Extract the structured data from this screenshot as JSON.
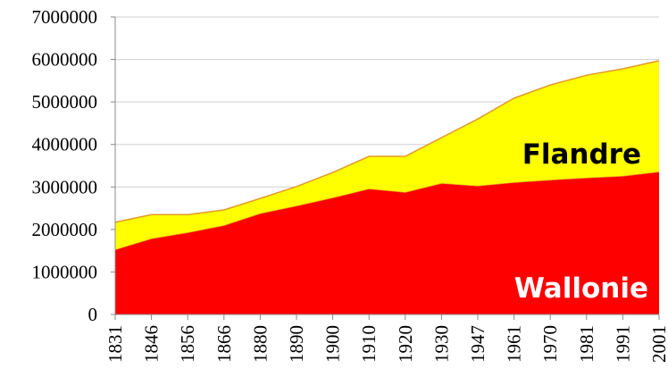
{
  "chart_data": {
    "type": "stacked_area",
    "categories": [
      "1831",
      "1846",
      "1856",
      "1866",
      "1880",
      "1890",
      "1900",
      "1910",
      "1920",
      "1930",
      "1947",
      "1961",
      "1970",
      "1981",
      "1991",
      "2001"
    ],
    "series": [
      {
        "name": "Wallonie",
        "color": "#ff0000",
        "values": [
          1530000,
          1790000,
          1930000,
          2100000,
          2380000,
          2560000,
          2750000,
          2960000,
          2880000,
          3090000,
          3030000,
          3110000,
          3170000,
          3220000,
          3260000,
          3360000
        ]
      },
      {
        "name": "Flandre",
        "color": "#ffff00",
        "values": [
          640000,
          560000,
          420000,
          360000,
          350000,
          450000,
          590000,
          760000,
          840000,
          1070000,
          1570000,
          1980000,
          2230000,
          2410000,
          2520000,
          2610000
        ]
      }
    ],
    "ylim": [
      0,
      7000000
    ],
    "yticks": [
      0,
      1000000,
      2000000,
      3000000,
      4000000,
      5000000,
      6000000,
      7000000
    ],
    "grid": true
  }
}
